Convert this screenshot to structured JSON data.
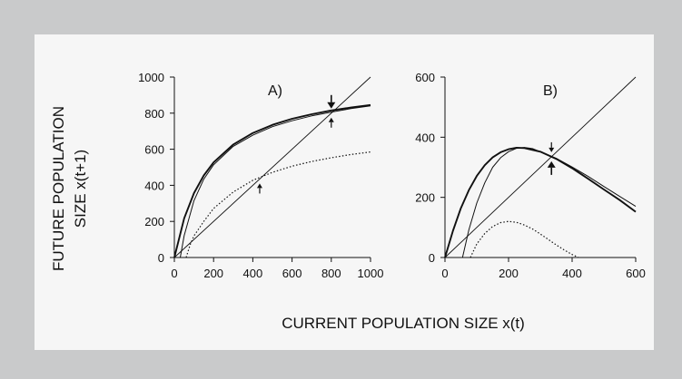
{
  "figure": {
    "ylabel_line1": "FUTURE POPULATION",
    "ylabel_line2": "SIZE x(t+1)",
    "xlabel": "CURRENT POPULATION SIZE x(t)",
    "background": "#f6f6f6",
    "outer_background": "#c9cacb"
  },
  "chart_data": [
    {
      "type": "line",
      "panel_label": "A)",
      "xlabel": "",
      "ylabel": "",
      "xlim": [
        0,
        1000
      ],
      "ylim": [
        0,
        1000
      ],
      "xticks": [
        0,
        200,
        400,
        600,
        800,
        1000
      ],
      "yticks": [
        0,
        200,
        400,
        600,
        800,
        1000
      ],
      "grid": false,
      "legend": "none",
      "series": [
        {
          "style": "solid-thick",
          "x": [
            0,
            50,
            100,
            150,
            200,
            300,
            400,
            500,
            600,
            700,
            800,
            900,
            1000
          ],
          "y": [
            0,
            217,
            357,
            455,
            527,
            626,
            690,
            735,
            769,
            794,
            815,
            831,
            845
          ]
        },
        {
          "style": "solid-thin",
          "x": [
            30,
            50,
            100,
            150,
            200,
            300,
            400,
            500,
            600,
            700,
            800,
            900,
            1000
          ],
          "y": [
            0,
            121,
            315,
            434,
            514,
            616,
            678,
            725,
            758,
            785,
            806,
            825,
            840
          ]
        },
        {
          "style": "dotted",
          "x": [
            60,
            80,
            100,
            150,
            200,
            300,
            400,
            500,
            600,
            700,
            800,
            900,
            1000
          ],
          "y": [
            0,
            70,
            120,
            200,
            272,
            363,
            428,
            472,
            506,
            532,
            553,
            571,
            585
          ]
        },
        {
          "style": "identity",
          "x": [
            0,
            1000
          ],
          "y": [
            0,
            1000
          ]
        }
      ],
      "markers": [
        {
          "x": 800,
          "y": 800,
          "direction": "down",
          "size": "large"
        },
        {
          "x": 800,
          "y": 800,
          "direction": "up",
          "size": "small"
        },
        {
          "x": 435,
          "y": 435,
          "direction": "up",
          "size": "small"
        }
      ]
    },
    {
      "type": "line",
      "panel_label": "B)",
      "xlabel": "",
      "ylabel": "",
      "xlim": [
        0,
        600
      ],
      "ylim": [
        0,
        600
      ],
      "xticks": [
        0,
        200,
        400,
        600
      ],
      "yticks": [
        0,
        200,
        400,
        600
      ],
      "grid": false,
      "legend": "none",
      "series": [
        {
          "style": "solid-thick",
          "x": [
            0,
            25,
            50,
            75,
            100,
            125,
            150,
            175,
            200,
            225,
            250,
            300,
            350,
            400,
            450,
            500,
            550,
            600
          ],
          "y": [
            0,
            89,
            164,
            224,
            271,
            307,
            333,
            350,
            360,
            365,
            364,
            352,
            328,
            297,
            262,
            226,
            191,
            152
          ]
        },
        {
          "style": "solid-thin",
          "x": [
            55,
            75,
            100,
            125,
            150,
            175,
            200,
            225,
            250,
            275,
            300,
            350,
            400,
            450,
            500,
            550,
            600
          ],
          "y": [
            0,
            92,
            181,
            248,
            300,
            332,
            352,
            363,
            366,
            362,
            352,
            330,
            301,
            270,
            236,
            203,
            170
          ]
        },
        {
          "style": "dotted",
          "x": [
            80,
            100,
            125,
            150,
            175,
            200,
            225,
            250,
            275,
            300,
            325,
            350,
            375,
            400,
            420
          ],
          "y": [
            0,
            45,
            80,
            103,
            116,
            120,
            117,
            108,
            95,
            78,
            60,
            42,
            25,
            10,
            0
          ]
        },
        {
          "style": "identity",
          "x": [
            0,
            600
          ],
          "y": [
            0,
            600
          ]
        }
      ],
      "markers": [
        {
          "x": 335,
          "y": 335,
          "direction": "down",
          "size": "small"
        },
        {
          "x": 335,
          "y": 335,
          "direction": "up",
          "size": "large"
        }
      ]
    }
  ]
}
